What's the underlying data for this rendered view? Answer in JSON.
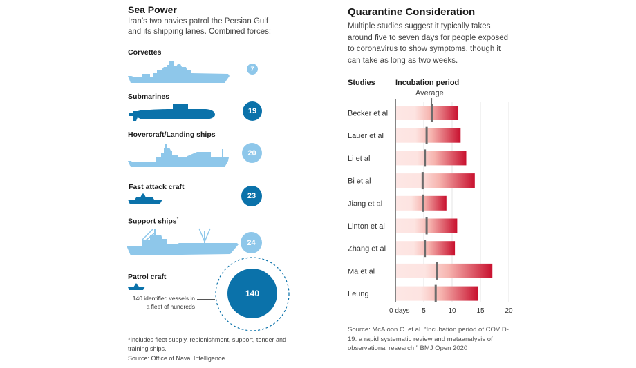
{
  "sea_power": {
    "title": "Sea Power",
    "subtitle": "Iran’s two navies patrol the Persian Gulf and its shipping lanes. Combined forces:",
    "categories": [
      {
        "label": "Corvettes",
        "count": "7",
        "shade": "light",
        "icon": "corvette-silhouette-icon"
      },
      {
        "label": "Submarines",
        "count": "19",
        "shade": "dark",
        "icon": "submarine-silhouette-icon"
      },
      {
        "label": "Hovercraft/Landing ships",
        "count": "20",
        "shade": "light",
        "icon": "landing-ship-silhouette-icon"
      },
      {
        "label": "Fast attack craft",
        "count": "23",
        "shade": "dark",
        "icon": "fast-attack-craft-silhouette-icon"
      },
      {
        "label": "Support ships",
        "footnote_mark": "*",
        "count": "24",
        "shade": "light",
        "icon": "support-ship-silhouette-icon"
      },
      {
        "label": "Patrol craft",
        "count": "140",
        "shade": "dark",
        "icon": "patrol-craft-silhouette-icon"
      }
    ],
    "patrol_note": "140 identified vessels in a fleet of hundreds",
    "footnote": "*Includes fleet supply, replenishment, support, tender and training ships.",
    "source": "Source: Office of Naval Intelligence",
    "colors": {
      "light": "#8ec7ea",
      "dark": "#0b72aa"
    }
  },
  "chart_data": {
    "type": "bar",
    "title": "Quarantine Consideration",
    "subtitle": "Multiple studies suggest it typically takes around five to seven days for people exposed to coronavirus to show symptoms, though it can take as long as two weeks.",
    "category_header": "Studies",
    "value_header": "Incubation period",
    "marker_label": "Average",
    "categories": [
      "Becker et al",
      "Lauer et al",
      "Li et al",
      "Bi et al",
      "Jiang et al",
      "Linton et al",
      "Zhang et al",
      "Ma et al",
      "Leung"
    ],
    "series": [
      {
        "name": "Incubation period (upper end, days)",
        "values": [
          11.1,
          11.5,
          12.5,
          14.0,
          9.0,
          10.9,
          10.5,
          17.1,
          14.6
        ]
      },
      {
        "name": "Average (days)",
        "values": [
          6.4,
          5.5,
          5.2,
          4.8,
          4.9,
          5.5,
          5.2,
          7.3,
          7.1
        ]
      }
    ],
    "xlim": [
      0,
      20
    ],
    "xticks": [
      0,
      5,
      10,
      15,
      20
    ],
    "xtick_labels": [
      "0 days",
      "5",
      "10",
      "15",
      "20"
    ],
    "grid": true,
    "colors": {
      "bar_start": "#fde6e4",
      "bar_mid": "#f6a9a4",
      "bar_end": "#c8102e",
      "average_marker": "#6b6b6b"
    },
    "source": "Source: McAloon C. et al. “Incubation period of COVID-19: a rapid systematic review and metaanalysis of observational research.” BMJ Open 2020"
  }
}
